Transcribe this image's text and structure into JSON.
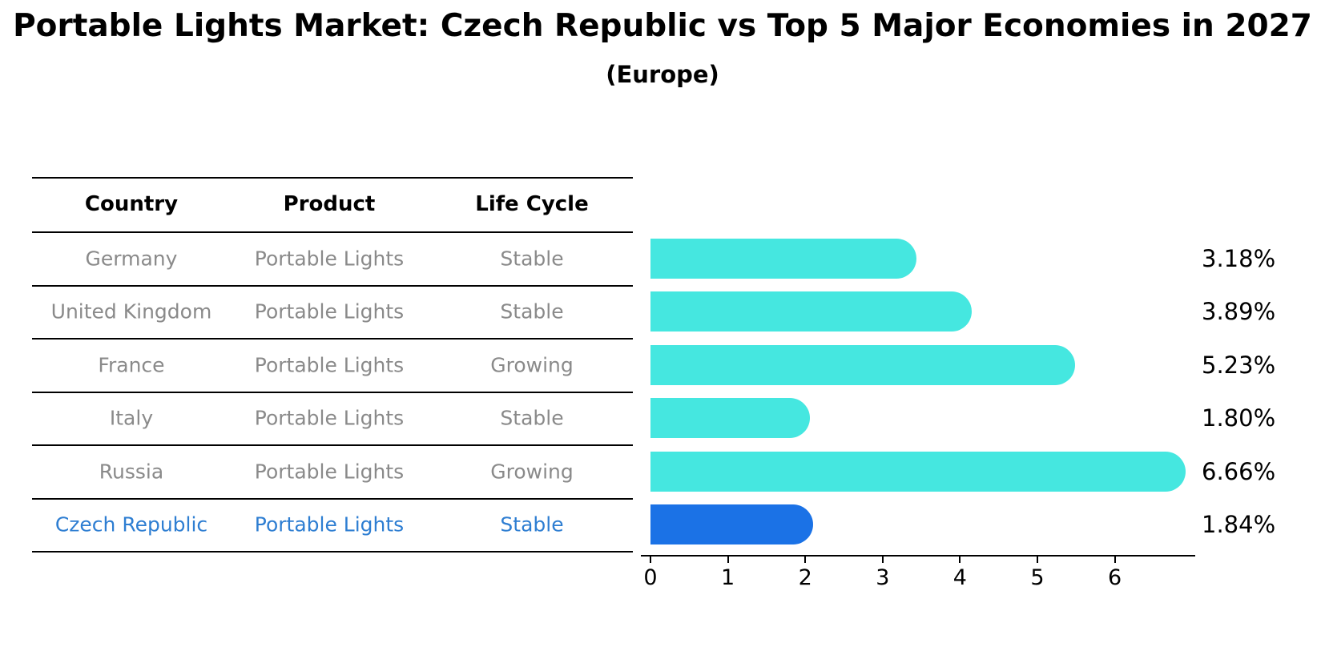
{
  "title": "Portable Lights Market: Czech Republic vs Top 5 Major Economies in 2027",
  "subtitle": "(Europe)",
  "table": {
    "headers": [
      "Country",
      "Product",
      "Life Cycle"
    ],
    "rows": [
      {
        "country": "Germany",
        "product": "Portable Lights",
        "life_cycle": "Stable"
      },
      {
        "country": "United Kingdom",
        "product": "Portable Lights",
        "life_cycle": "Stable"
      },
      {
        "country": "France",
        "product": "Portable Lights",
        "life_cycle": "Growing"
      },
      {
        "country": "Italy",
        "product": "Portable Lights",
        "life_cycle": "Stable"
      },
      {
        "country": "Russia",
        "product": "Portable Lights",
        "life_cycle": "Growing"
      },
      {
        "country": "Czech Republic",
        "product": "Portable Lights",
        "life_cycle": "Stable"
      }
    ],
    "highlight_row_index": 5
  },
  "chart_data": {
    "type": "bar",
    "orientation": "horizontal",
    "title": "Portable Lights Market: Czech Republic vs Top 5 Major Economies in 2027",
    "subtitle": "(Europe)",
    "categories": [
      "Germany",
      "United Kingdom",
      "France",
      "Italy",
      "Russia",
      "Czech Republic"
    ],
    "values": [
      3.18,
      3.89,
      5.23,
      1.8,
      6.66,
      1.84
    ],
    "value_labels": [
      "3.18%",
      "3.89%",
      "5.23%",
      "1.80%",
      "6.66%",
      "1.84%"
    ],
    "x_ticks": [
      0,
      1,
      2,
      3,
      4,
      5,
      6
    ],
    "xlim": [
      0,
      7.05
    ],
    "xlabel": "",
    "ylabel": "",
    "grid": false,
    "legend": false,
    "colors": {
      "bar": "#45e7e0",
      "highlight_bar": "#1b72e6",
      "highlight_text": "#2e7ed2",
      "row_text": "#8a8a8a",
      "axis": "#000000"
    },
    "highlight_index": 5
  }
}
